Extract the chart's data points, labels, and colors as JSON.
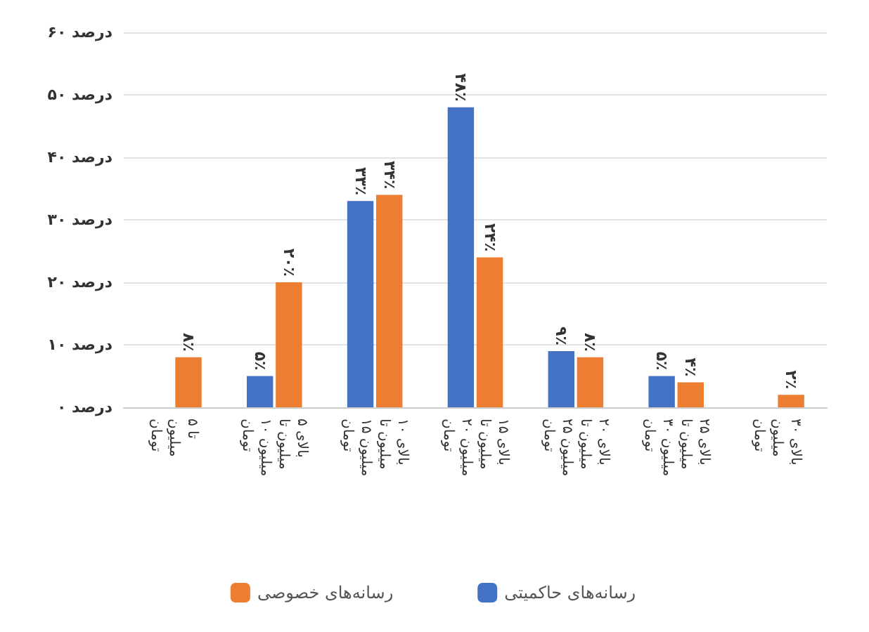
{
  "chart_data": {
    "type": "bar",
    "categories": [
      "تا ۵ میلیون تومان",
      "بالای ۵ میلیون تا ۱۰ میلیون تومان",
      "بالای ۱۰ میلیون تا ۱۵ میلیون تومان",
      "بالای ۱۵ میلیون تا ۲۰ میلیون تومان",
      "بالای ۲۰ میلیون تا ۲۵ میلیون تومان",
      "بالای ۲۵ میلیون تا ۳۰ میلیون تومان",
      "بالای ۳۰ میلیون تومان"
    ],
    "series": [
      {
        "name": "رسانه‌های حاکمیتی",
        "color": "#4472c4",
        "values": [
          null,
          5,
          33,
          48,
          9,
          5,
          null
        ],
        "value_labels": [
          null,
          "۵٪",
          "۳۳٪",
          "۴۸٪",
          "۹٪",
          "۵٪",
          null
        ]
      },
      {
        "name": "رسانه‌های خصوصی",
        "color": "#ed7d31",
        "values": [
          8,
          20,
          34,
          24,
          8,
          4,
          2
        ],
        "value_labels": [
          "۸٪",
          "۲۰٪",
          "۳۴٪",
          "۲۴٪",
          "۸٪",
          "۴٪",
          "۲٪"
        ]
      }
    ],
    "ylim": [
      0,
      60
    ],
    "yticks": [
      {
        "value": 0,
        "label": "۰ درصد"
      },
      {
        "value": 10,
        "label": "۱۰ درصد"
      },
      {
        "value": 20,
        "label": "۲۰ درصد"
      },
      {
        "value": 30,
        "label": "۳۰ درصد"
      },
      {
        "value": 40,
        "label": "۴۰ درصد"
      },
      {
        "value": 50,
        "label": "۵۰ درصد"
      },
      {
        "value": 60,
        "label": "۶۰ درصد"
      }
    ],
    "grid": "y",
    "legend": "bottom"
  }
}
